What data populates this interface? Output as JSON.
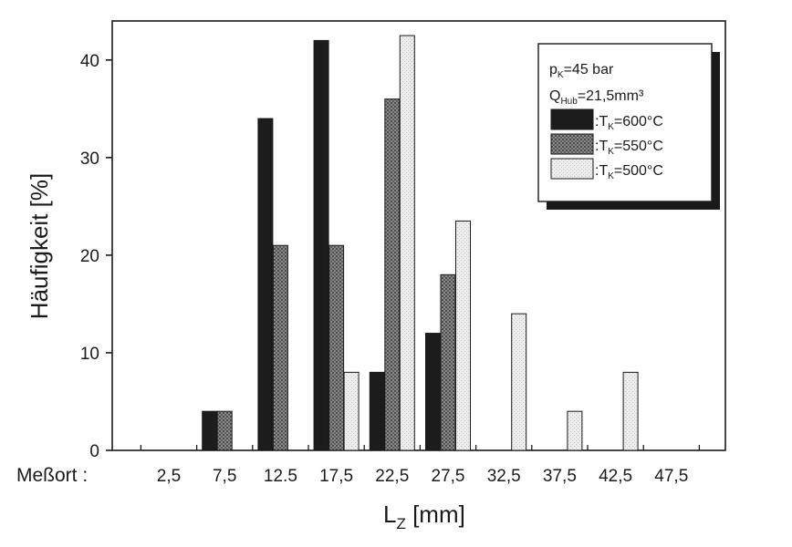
{
  "chart_data": {
    "type": "bar",
    "ylabel": "Häufigkeit [%]",
    "xlabel_main": "L",
    "xlabel_sub": "Z",
    "xlabel_unit": " [mm]",
    "x_prefix_label": "Meßort :",
    "categories": [
      "2,5",
      "7,5",
      "12.5",
      "17,5",
      "22,5",
      "27,5",
      "32,5",
      "37,5",
      "42,5",
      "47,5"
    ],
    "yticks": [
      0,
      10,
      20,
      30,
      40
    ],
    "ylim": [
      0,
      44
    ],
    "series": [
      {
        "key": "600",
        "values": [
          0,
          4,
          34,
          42,
          8,
          12,
          0,
          0,
          0,
          0
        ]
      },
      {
        "key": "550",
        "values": [
          0,
          4,
          21,
          21,
          36,
          18,
          0,
          0,
          0,
          0
        ]
      },
      {
        "key": "500",
        "values": [
          0,
          0,
          0,
          8,
          42.5,
          23.5,
          14,
          4,
          8,
          0
        ]
      }
    ],
    "legend": {
      "position": "top-right",
      "line1_main": "p",
      "line1_sub": "K",
      "line1_rest": "=45 bar",
      "line2_main": "Q",
      "line2_sub": "Hub",
      "line2_rest": "=21,5mm³",
      "entries": [
        {
          "prefix": ":T",
          "sub": "K",
          "rest": "=600°C"
        },
        {
          "prefix": ":T",
          "sub": "K",
          "rest": "=550°C"
        },
        {
          "prefix": ":T",
          "sub": "K",
          "rest": "=500°C"
        }
      ]
    },
    "colors": {
      "s600": "#1c1c1c",
      "s550": "#777777",
      "s500": "#e3e3e3"
    }
  }
}
